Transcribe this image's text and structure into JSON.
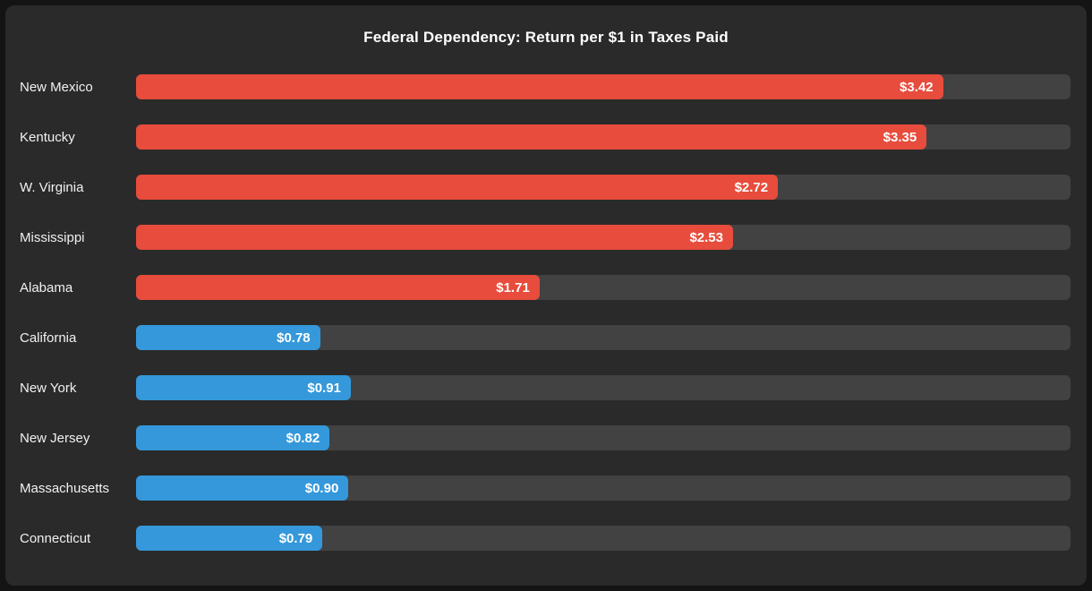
{
  "window": {
    "frame_color": "#141414",
    "panel_color": "#2a2a2a"
  },
  "chart_data": {
    "type": "bar",
    "orientation": "horizontal",
    "title": "Federal Dependency: Return per $1 in Taxes Paid",
    "categories": [
      "New Mexico",
      "Kentucky",
      "W. Virginia",
      "Mississippi",
      "Alabama",
      "California",
      "New York",
      "New Jersey",
      "Massachusetts",
      "Connecticut"
    ],
    "values": [
      3.42,
      3.35,
      2.72,
      2.53,
      1.71,
      0.78,
      0.91,
      0.82,
      0.9,
      0.79
    ],
    "value_labels": [
      "$3.42",
      "$3.35",
      "$2.72",
      "$2.53",
      "$1.71",
      "$0.78",
      "$0.91",
      "$0.82",
      "$0.90",
      "$0.79"
    ],
    "bar_colors": [
      "#e74c3c",
      "#e74c3c",
      "#e74c3c",
      "#e74c3c",
      "#e74c3c",
      "#3498db",
      "#3498db",
      "#3498db",
      "#3498db",
      "#3498db"
    ],
    "colors": {
      "dependent_state": "#e74c3c",
      "donor_state": "#3498db",
      "track": "#424242",
      "label_text": "#f1f1f1",
      "value_text": "#ffffff",
      "title_text": "#ffffff"
    },
    "xlim": [
      0,
      3.96
    ],
    "grid": false,
    "legend": null,
    "xlabel": "",
    "ylabel": ""
  }
}
